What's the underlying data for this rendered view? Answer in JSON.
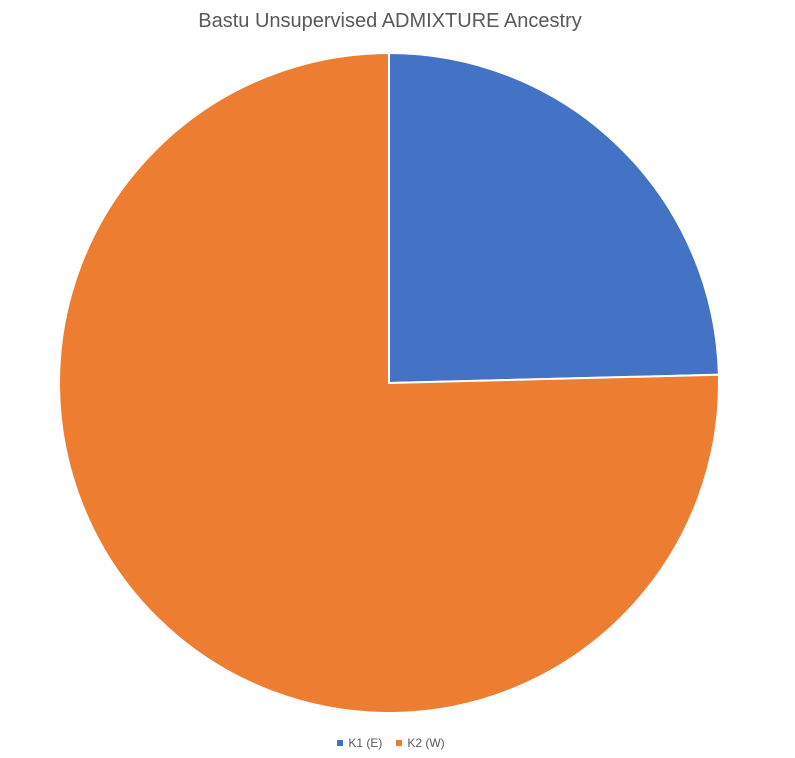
{
  "chart_data": {
    "type": "pie",
    "title": "Bastu Unsupervised ADMIXTURE Ancestry",
    "slices": [
      {
        "label": "K1 (E)",
        "value": 24.6,
        "color": "#4472C4"
      },
      {
        "label": "K2 (W)",
        "value": 75.4,
        "color": "#ED7D31"
      }
    ],
    "start_angle_deg": 0,
    "direction": "clockwise",
    "legend_position": "bottom"
  }
}
